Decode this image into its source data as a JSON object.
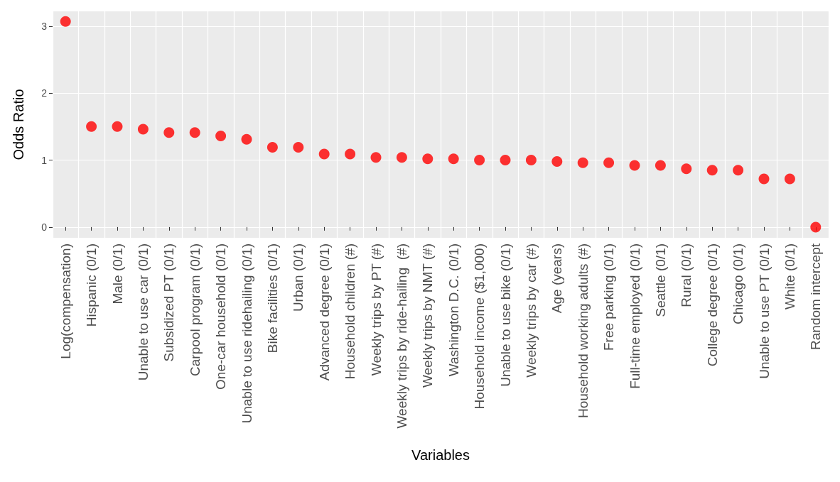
{
  "chart_data": {
    "type": "scatter",
    "xlabel": "Variables",
    "ylabel": "Odds Ratio",
    "categories": [
      "Log(compensation)",
      "Hispanic (0/1)",
      "Male (0/1)",
      "Unable to use car (0/1)",
      "Subsidized PT (0/1)",
      "Carpool program (0/1)",
      "One-car household (0/1)",
      "Unable to use ridehailing (0/1)",
      "Bike facilities (0/1)",
      "Urban (0/1)",
      "Advanced degree (0/1)",
      "Household children (#)",
      "Weekly trips by PT (#)",
      "Weekly trips by ride-hailing  (#)",
      "Weekly trips by NMT (#)",
      "Washington D.C. (0/1)",
      "Household income ($1,000)",
      "Unable to use bike (0/1)",
      "Weekly trips by car (#)",
      "Age (years)",
      "Household working adults (#)",
      "Free parking (0/1)",
      "Full-time employed (0/1)",
      "Seattle (0/1)",
      "Rural (0/1)",
      "College degree (0/1)",
      "Chicago (0/1)",
      "Unable to use PT (0/1)",
      "White (0/1)",
      "Random intercept"
    ],
    "values": [
      3.07,
      1.5,
      1.5,
      1.46,
      1.41,
      1.41,
      1.36,
      1.31,
      1.19,
      1.19,
      1.09,
      1.09,
      1.04,
      1.04,
      1.02,
      1.02,
      1.0,
      1.0,
      1.0,
      0.98,
      0.96,
      0.96,
      0.92,
      0.92,
      0.87,
      0.85,
      0.85,
      0.72,
      0.72,
      0
    ],
    "color": "#ff0000",
    "marker": "circle",
    "ylim": [
      -0.16,
      3.22
    ],
    "yticks": [
      0,
      1,
      2,
      3
    ],
    "grid": true
  }
}
